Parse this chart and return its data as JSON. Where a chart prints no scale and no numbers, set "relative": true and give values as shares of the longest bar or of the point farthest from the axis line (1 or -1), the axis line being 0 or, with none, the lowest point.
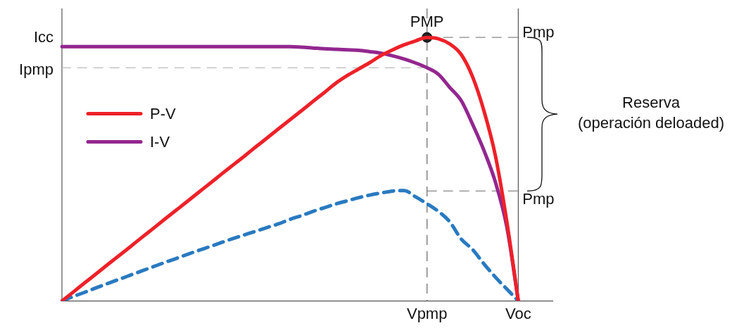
{
  "chart_data": {
    "type": "line",
    "relative": true,
    "categories": [
      null,
      null,
      null,
      null,
      null,
      null,
      null,
      null,
      null,
      null,
      null,
      null,
      null,
      null,
      null,
      null,
      null,
      null,
      null,
      null,
      null,
      null,
      null,
      null,
      null,
      null,
      null,
      null,
      null,
      null,
      null,
      null,
      "Vpmp",
      null,
      null,
      null,
      null,
      null,
      null,
      null,
      "Voc",
      null,
      null,
      null
    ],
    "series": [
      {
        "name": "P-V",
        "color": "#ee2129",
        "values": [
          0,
          0.034,
          0.069,
          0.103,
          0.138,
          0.172,
          0.206,
          0.241,
          0.275,
          0.31,
          0.344,
          0.378,
          0.413,
          0.447,
          0.482,
          0.516,
          0.55,
          0.585,
          0.619,
          0.654,
          0.688,
          0.722,
          0.757,
          0.791,
          0.826,
          0.855,
          0.88,
          0.905,
          0.932,
          0.953,
          0.972,
          0.987,
          1,
          0.995,
          0.975,
          0.935,
          0.85,
          0.72,
          0.55,
          0.3,
          0,
          null,
          null,
          null
        ]
      },
      {
        "name": "I-V",
        "color": "#93278f",
        "values": [
          0.965,
          0.965,
          0.965,
          0.965,
          0.965,
          0.965,
          0.965,
          0.965,
          0.965,
          0.965,
          0.965,
          0.965,
          0.965,
          0.965,
          0.965,
          0.965,
          0.965,
          0.965,
          0.965,
          0.965,
          0.965,
          0.963,
          0.96,
          0.957,
          0.955,
          0.953,
          0.951,
          0.946,
          0.94,
          0.93,
          0.918,
          0.903,
          0.885,
          0.86,
          0.81,
          0.76,
          0.67,
          0.57,
          0.45,
          0.28,
          0,
          null,
          null,
          null
        ]
      },
      {
        "color": "#2a7ac0",
        "line_style": "dashed",
        "values": [
          0,
          0.017,
          0.033,
          0.05,
          0.066,
          0.082,
          0.098,
          0.114,
          0.13,
          0.146,
          0.161,
          0.177,
          0.192,
          0.207,
          0.222,
          0.237,
          0.251,
          0.265,
          0.279,
          0.293,
          0.31,
          0.324,
          0.34,
          0.354,
          0.368,
          0.38,
          0.392,
          0.402,
          0.41,
          0.417,
          0.419,
          0.395,
          0.369,
          0.34,
          0.3,
          0.235,
          0.195,
          0.14,
          0.09,
          0.045,
          0,
          null,
          null,
          null
        ]
      },
      {
        "type": "scatter",
        "color": "#222222",
        "marker": "circle",
        "x": [
          "Vpmp"
        ],
        "values": [
          1
        ]
      }
    ],
    "ref_lines": [
      {
        "axis": "x",
        "value": "Vpmp",
        "line_style": "dashed",
        "color": "#666666"
      },
      {
        "axis": "x",
        "value": "Voc",
        "line_style": "solid",
        "color": "#555555"
      },
      {
        "axis": "y",
        "value": 0.885,
        "label": "Ipmp",
        "line_style": "dashed",
        "color": "#aaaaaa"
      },
      {
        "axis": "y",
        "value": 1,
        "label": "Pmp",
        "line_style": "dashed",
        "color": "#888888"
      },
      {
        "axis": "y",
        "value": 0.417,
        "label": "Pmp",
        "line_style": "dashed",
        "color": "#888888"
      }
    ],
    "annotations": [
      "Icc",
      {
        "text": "PMP",
        "x": "Vpmp",
        "y": 1
      },
      "Reserva\n(operación deloaded)"
    ],
    "legend": "left",
    "grid": false,
    "marker": "none",
    "line_style": "solid"
  }
}
